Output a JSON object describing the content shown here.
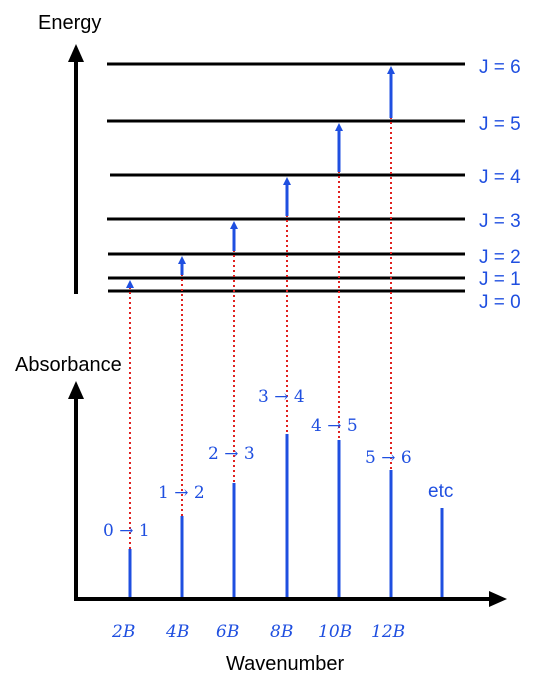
{
  "energy_axis": {
    "label": "Energy"
  },
  "absorbance_axis": {
    "label": "Absorbance"
  },
  "wavenumber_axis": {
    "label": "Wavenumber"
  },
  "levels": [
    {
      "label": "J = 0"
    },
    {
      "label": "J = 1"
    },
    {
      "label": "J = 2"
    },
    {
      "label": "J = 3"
    },
    {
      "label": "J = 4"
    },
    {
      "label": "J = 5"
    },
    {
      "label": "J = 6"
    }
  ],
  "transitions": [
    {
      "label": "0 → 1",
      "position": "2B"
    },
    {
      "label": "1 → 2",
      "position": "4B"
    },
    {
      "label": "2 → 3",
      "position": "6B"
    },
    {
      "label": "3 → 4",
      "position": "8B"
    },
    {
      "label": "4 → 5",
      "position": "10B"
    },
    {
      "label": "5 → 6",
      "position": "12B"
    }
  ],
  "etc_label": "etc",
  "colors": {
    "accent": "#1f4fe0",
    "dotted": "#e0201f",
    "ink": "#000000"
  }
}
